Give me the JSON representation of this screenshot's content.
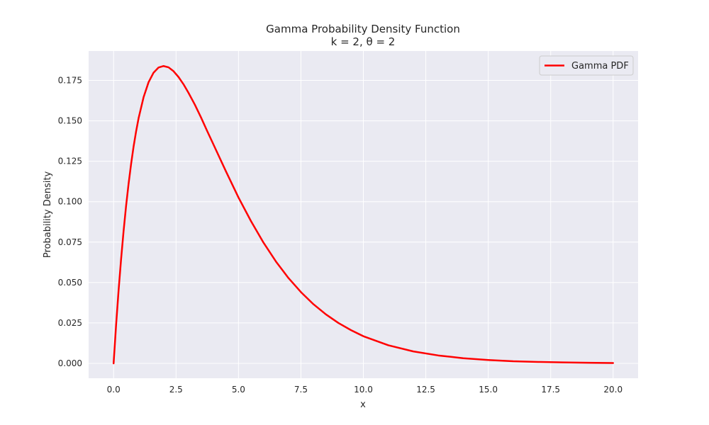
{
  "chart_data": {
    "type": "line",
    "title": "Gamma Probability Density Function",
    "subtitle": "k = 2, θ = 2",
    "xlabel": "x",
    "ylabel": "Probability Density",
    "xlim": [
      -1.0,
      21.0
    ],
    "ylim": [
      -0.0092,
      0.1932
    ],
    "xticks": [
      0,
      2.5,
      5,
      7.5,
      10,
      12.5,
      15,
      17.5,
      20
    ],
    "xtick_labels": [
      "0.0",
      "2.5",
      "5.0",
      "7.5",
      "10.0",
      "12.5",
      "15.0",
      "17.5",
      "20.0"
    ],
    "yticks": [
      0,
      0.025,
      0.05,
      0.075,
      0.1,
      0.125,
      0.15,
      0.175
    ],
    "ytick_labels": [
      "0.000",
      "0.025",
      "0.050",
      "0.075",
      "0.100",
      "0.125",
      "0.150",
      "0.175"
    ],
    "grid": true,
    "legend_position": "top-right",
    "background_color": "#eaeaf2",
    "grid_color": "#ffffff",
    "series": [
      {
        "name": "Gamma PDF",
        "color": "#ff0000",
        "x": [
          0,
          0.1,
          0.2,
          0.3,
          0.4,
          0.5,
          0.6,
          0.7,
          0.8,
          0.9,
          1.0,
          1.2,
          1.4,
          1.6,
          1.8,
          2.0,
          2.2,
          2.4,
          2.6,
          2.8,
          3.0,
          3.25,
          3.5,
          3.75,
          4.0,
          4.5,
          5.0,
          5.5,
          6.0,
          6.5,
          7.0,
          7.5,
          8.0,
          8.5,
          9.0,
          9.5,
          10.0,
          11.0,
          12.0,
          13.0,
          14.0,
          15.0,
          16.0,
          17.0,
          18.0,
          19.0,
          20.0
        ],
        "y": [
          0.0,
          0.0238,
          0.0452,
          0.0645,
          0.0819,
          0.0974,
          0.1111,
          0.1233,
          0.1341,
          0.1434,
          0.1516,
          0.1646,
          0.1739,
          0.1798,
          0.183,
          0.1839,
          0.1831,
          0.1807,
          0.1771,
          0.1726,
          0.1673,
          0.1601,
          0.1521,
          0.1436,
          0.1353,
          0.1187,
          0.1026,
          0.088,
          0.0747,
          0.063,
          0.0528,
          0.0441,
          0.0366,
          0.0303,
          0.025,
          0.0206,
          0.0168,
          0.0112,
          0.0074,
          0.0049,
          0.0032,
          0.0021,
          0.0013,
          0.0009,
          0.0006,
          0.0004,
          0.0002
        ]
      }
    ]
  }
}
